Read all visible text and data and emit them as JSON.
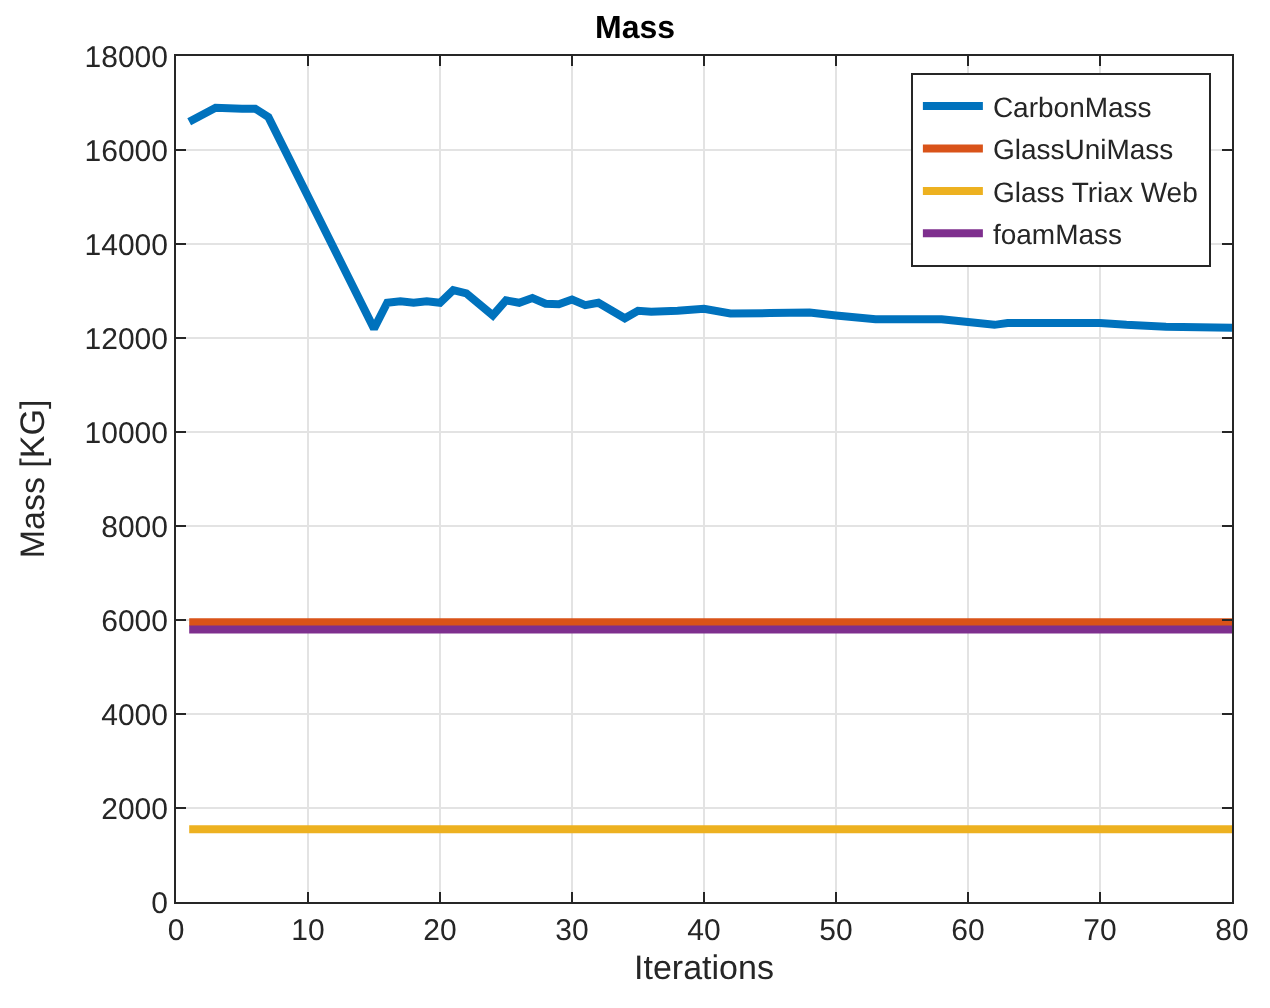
{
  "chart_data": {
    "type": "line",
    "title": "Mass",
    "xlabel": "Iterations",
    "ylabel": "Mass [KG]",
    "xlim": [
      0,
      80
    ],
    "xticks": [
      0,
      10,
      20,
      30,
      40,
      50,
      60,
      70,
      80
    ],
    "ylim": [
      0,
      18000
    ],
    "yticks": [
      0,
      2000,
      4000,
      6000,
      8000,
      10000,
      12000,
      14000,
      16000,
      18000
    ],
    "grid": true,
    "legend": "top right",
    "line_style": "solid",
    "marker": "none",
    "series": [
      {
        "name": "CarbonMass",
        "color": "#0072bd",
        "x": [
          1,
          3,
          5,
          6,
          7,
          15,
          16,
          17,
          18,
          19,
          20,
          21,
          22,
          24,
          25,
          26,
          27,
          28,
          29,
          30,
          31,
          32,
          34,
          35,
          36,
          38,
          40,
          42,
          45,
          48,
          50,
          53,
          58,
          60,
          62,
          63,
          70,
          72,
          75,
          80
        ],
        "values": [
          16600,
          16900,
          16880,
          16880,
          16700,
          12200,
          12750,
          12780,
          12750,
          12780,
          12750,
          13020,
          12950,
          12480,
          12800,
          12750,
          12850,
          12730,
          12720,
          12820,
          12700,
          12750,
          12420,
          12580,
          12560,
          12580,
          12620,
          12520,
          12530,
          12540,
          12480,
          12400,
          12400,
          12340,
          12280,
          12320,
          12320,
          12280,
          12240,
          12220
        ]
      },
      {
        "name": "GlassUniMass",
        "color": "#d95319",
        "x": [
          1,
          80
        ],
        "values": [
          5950,
          5950
        ]
      },
      {
        "name": "Glass Triax Web",
        "color": "#edb120",
        "x": [
          1,
          80
        ],
        "values": [
          1550,
          1550
        ]
      },
      {
        "name": "foamMass",
        "color": "#7e2f8e",
        "x": [
          1,
          80
        ],
        "values": [
          5800,
          5800
        ]
      }
    ]
  }
}
